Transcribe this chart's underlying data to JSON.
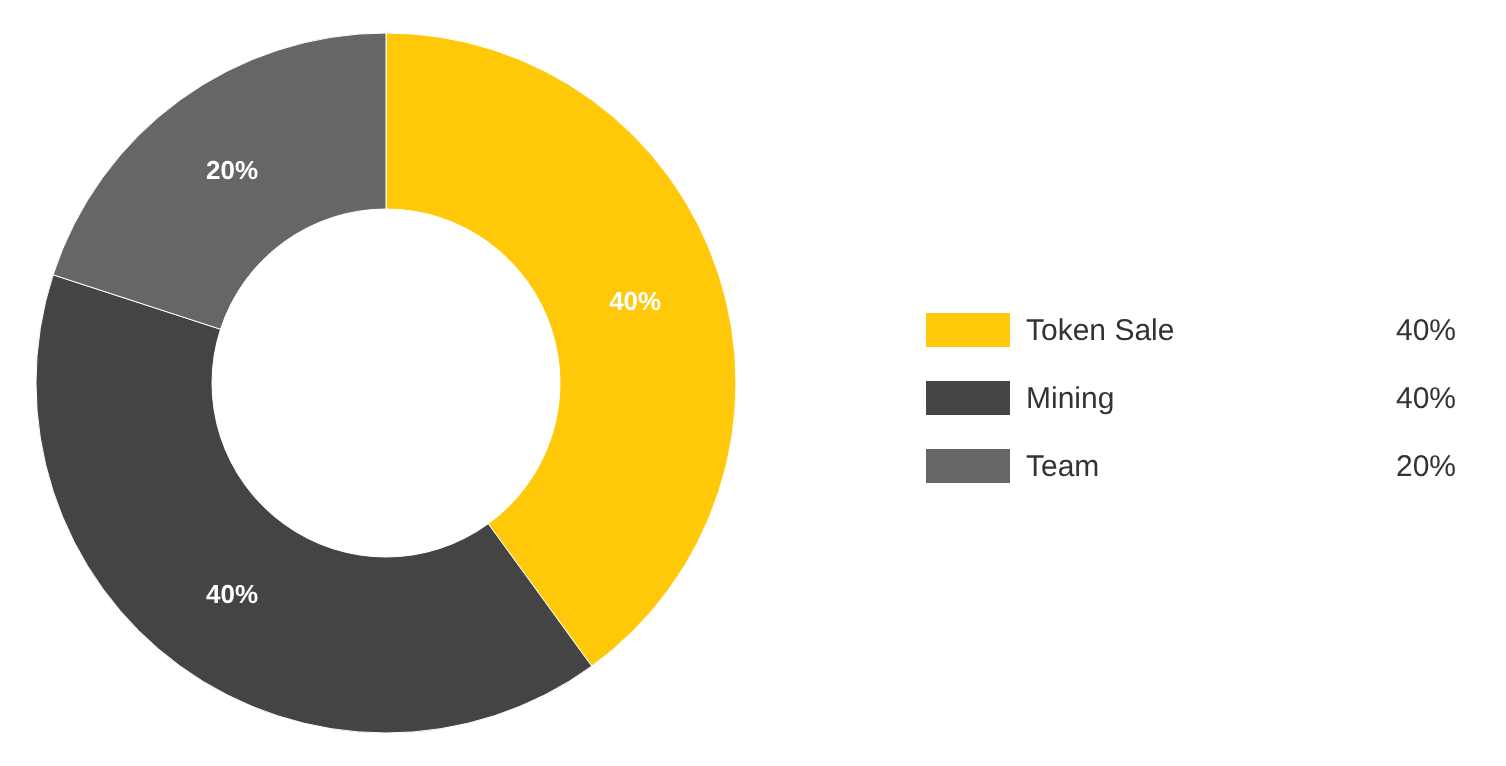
{
  "chart_data": {
    "type": "donut",
    "categories": [
      "Token Sale",
      "Mining",
      "Team"
    ],
    "values": [
      40,
      40,
      20
    ],
    "colors": [
      "#ffc90a",
      "#444444",
      "#666666"
    ],
    "value_labels": [
      "40%",
      "40%",
      "20%"
    ],
    "legend": "right"
  }
}
